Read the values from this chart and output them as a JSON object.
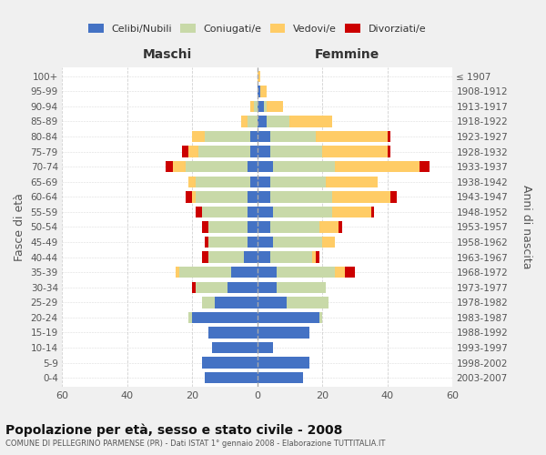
{
  "age_groups": [
    "0-4",
    "5-9",
    "10-14",
    "15-19",
    "20-24",
    "25-29",
    "30-34",
    "35-39",
    "40-44",
    "45-49",
    "50-54",
    "55-59",
    "60-64",
    "65-69",
    "70-74",
    "75-79",
    "80-84",
    "85-89",
    "90-94",
    "95-99",
    "100+"
  ],
  "birth_years": [
    "2003-2007",
    "1998-2002",
    "1993-1997",
    "1988-1992",
    "1983-1987",
    "1978-1982",
    "1973-1977",
    "1968-1972",
    "1963-1967",
    "1958-1962",
    "1953-1957",
    "1948-1952",
    "1943-1947",
    "1938-1942",
    "1933-1937",
    "1928-1932",
    "1923-1927",
    "1918-1922",
    "1913-1917",
    "1908-1912",
    "≤ 1907"
  ],
  "male": {
    "celibe": [
      16,
      17,
      14,
      15,
      20,
      13,
      9,
      8,
      4,
      3,
      3,
      3,
      3,
      2,
      3,
      2,
      2,
      0,
      0,
      0,
      0
    ],
    "coniugato": [
      0,
      0,
      0,
      0,
      1,
      4,
      10,
      16,
      11,
      12,
      12,
      14,
      16,
      17,
      19,
      16,
      14,
      3,
      1,
      0,
      0
    ],
    "vedovo": [
      0,
      0,
      0,
      0,
      0,
      0,
      0,
      1,
      0,
      0,
      0,
      0,
      1,
      2,
      4,
      3,
      4,
      2,
      1,
      0,
      0
    ],
    "divorziato": [
      0,
      0,
      0,
      0,
      0,
      0,
      1,
      0,
      2,
      1,
      2,
      2,
      2,
      0,
      2,
      2,
      0,
      0,
      0,
      0,
      0
    ]
  },
  "female": {
    "nubile": [
      14,
      16,
      5,
      16,
      19,
      9,
      6,
      6,
      4,
      5,
      4,
      5,
      4,
      4,
      5,
      4,
      4,
      3,
      2,
      1,
      0
    ],
    "coniugata": [
      0,
      0,
      0,
      0,
      1,
      13,
      15,
      18,
      13,
      15,
      15,
      18,
      19,
      17,
      19,
      16,
      14,
      7,
      1,
      0,
      0
    ],
    "vedova": [
      0,
      0,
      0,
      0,
      0,
      0,
      0,
      3,
      1,
      4,
      6,
      12,
      18,
      16,
      26,
      20,
      22,
      13,
      5,
      2,
      1
    ],
    "divorziata": [
      0,
      0,
      0,
      0,
      0,
      0,
      0,
      3,
      1,
      0,
      1,
      1,
      2,
      0,
      3,
      1,
      1,
      0,
      0,
      0,
      0
    ]
  },
  "colors": {
    "celibe_nubile": "#4472C4",
    "coniugato_coniugata": "#c8d9a8",
    "vedovo_vedova": "#FFCC66",
    "divorziato_divorziata": "#CC0000"
  },
  "title": "Popolazione per età, sesso e stato civile - 2008",
  "subtitle": "COMUNE DI PELLEGRINO PARMENSE (PR) - Dati ISTAT 1° gennaio 2008 - Elaborazione TUTTITALIA.IT",
  "xlabel_left": "Maschi",
  "xlabel_right": "Femmine",
  "ylabel_left": "Fasce di età",
  "ylabel_right": "Anni di nascita",
  "xlim": 60,
  "legend_labels": [
    "Celibi/Nubili",
    "Coniugati/e",
    "Vedovi/e",
    "Divorziati/e"
  ],
  "bg_color": "#f0f0f0",
  "plot_bg": "#ffffff",
  "grid_color": "#cccccc"
}
